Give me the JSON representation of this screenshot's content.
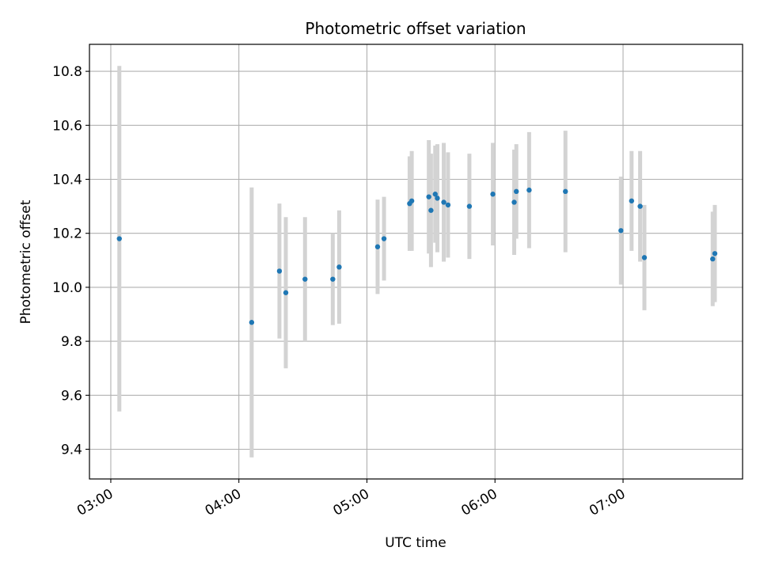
{
  "chart_data": {
    "type": "scatter",
    "title": "Photometric offset variation",
    "xlabel": "UTC time",
    "ylabel": "Photometric offset",
    "xlim": [
      "02:50",
      "07:56"
    ],
    "ylim": [
      9.29,
      10.9
    ],
    "x_ticks": [
      "03:00",
      "04:00",
      "05:00",
      "06:00",
      "07:00"
    ],
    "y_ticks": [
      "9.4",
      "9.6",
      "9.8",
      "10.0",
      "10.2",
      "10.4",
      "10.6",
      "10.8"
    ],
    "grid": true,
    "errorbar_color": "#d3d3d3",
    "marker_color": "#1f77b4",
    "points": [
      {
        "x": "03:04",
        "y": 10.18,
        "err": 0.64
      },
      {
        "x": "04:06",
        "y": 9.87,
        "err": 0.5
      },
      {
        "x": "04:19",
        "y": 10.06,
        "err": 0.25
      },
      {
        "x": "04:22",
        "y": 9.98,
        "err": 0.28
      },
      {
        "x": "04:31",
        "y": 10.03,
        "err": 0.23
      },
      {
        "x": "04:44",
        "y": 10.03,
        "err": 0.17
      },
      {
        "x": "04:47",
        "y": 10.075,
        "err": 0.21
      },
      {
        "x": "05:05",
        "y": 10.15,
        "err": 0.175
      },
      {
        "x": "05:08",
        "y": 10.18,
        "err": 0.155
      },
      {
        "x": "05:20",
        "y": 10.31,
        "err": 0.175
      },
      {
        "x": "05:21",
        "y": 10.32,
        "err": 0.185
      },
      {
        "x": "05:29",
        "y": 10.335,
        "err": 0.21
      },
      {
        "x": "05:30",
        "y": 10.285,
        "err": 0.21
      },
      {
        "x": "05:32",
        "y": 10.345,
        "err": 0.18
      },
      {
        "x": "05:33",
        "y": 10.33,
        "err": 0.2
      },
      {
        "x": "05:36",
        "y": 10.315,
        "err": 0.22
      },
      {
        "x": "05:38",
        "y": 10.305,
        "err": 0.195
      },
      {
        "x": "05:48",
        "y": 10.3,
        "err": 0.195
      },
      {
        "x": "05:59",
        "y": 10.345,
        "err": 0.19
      },
      {
        "x": "06:09",
        "y": 10.315,
        "err": 0.195
      },
      {
        "x": "06:10",
        "y": 10.355,
        "err": 0.175
      },
      {
        "x": "06:16",
        "y": 10.36,
        "err": 0.215
      },
      {
        "x": "06:33",
        "y": 10.355,
        "err": 0.225
      },
      {
        "x": "06:59",
        "y": 10.21,
        "err": 0.2
      },
      {
        "x": "07:04",
        "y": 10.32,
        "err": 0.185
      },
      {
        "x": "07:08",
        "y": 10.3,
        "err": 0.205
      },
      {
        "x": "07:10",
        "y": 10.11,
        "err": 0.195
      },
      {
        "x": "07:42",
        "y": 10.105,
        "err": 0.175
      },
      {
        "x": "07:43",
        "y": 10.125,
        "err": 0.18
      }
    ]
  }
}
